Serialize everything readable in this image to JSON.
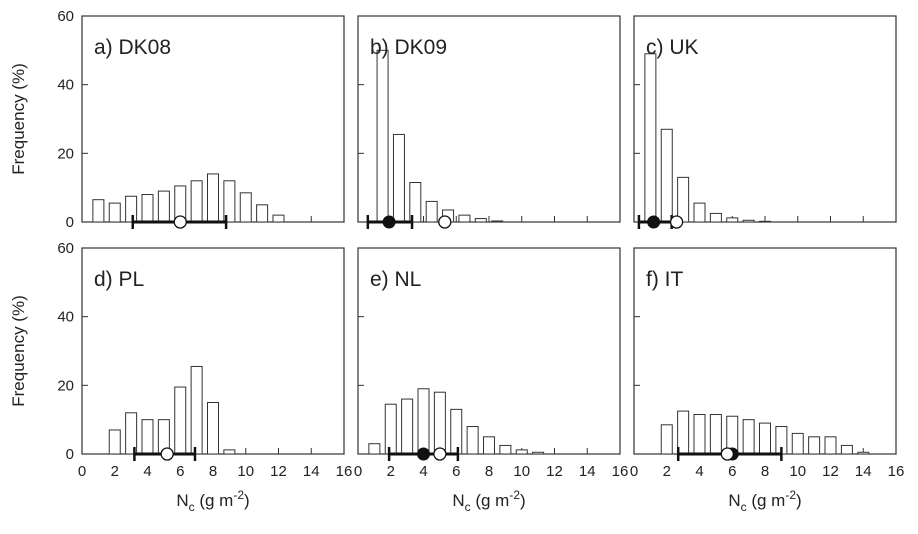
{
  "figure": {
    "ylabel": "Frequency (%)",
    "xlabel_main": "N",
    "xlabel_sub": "c",
    "xlabel_mid": " (g m",
    "xlabel_sup": "-2",
    "xlabel_end": ")"
  },
  "chart_data": [
    {
      "type": "bar",
      "title": "a) DK08",
      "x": [
        1,
        2,
        3,
        4,
        5,
        6,
        7,
        8,
        9,
        10,
        11,
        12
      ],
      "values": [
        6.5,
        5.5,
        7.5,
        8,
        9,
        10.5,
        12,
        14,
        12,
        8.5,
        5,
        2
      ],
      "xlim": [
        0,
        16
      ],
      "ylim": [
        0,
        60
      ],
      "mean": 6.0,
      "median": null,
      "range": [
        3.1,
        8.8
      ]
    },
    {
      "type": "bar",
      "title": "b) DK09",
      "x": [
        1.5,
        2.5,
        3.5,
        4.5,
        5.5,
        6.5,
        7.5,
        8.5
      ],
      "values": [
        50,
        25.5,
        11.5,
        6,
        3.5,
        2,
        1,
        0.3
      ],
      "xlim": [
        0,
        16
      ],
      "ylim": [
        0,
        60
      ],
      "mean": 5.3,
      "median": 1.9,
      "range": [
        0.6,
        3.3
      ]
    },
    {
      "type": "bar",
      "title": "c) UK",
      "x": [
        1,
        2,
        3,
        4,
        5,
        6,
        7,
        8
      ],
      "values": [
        49,
        27,
        13,
        5.5,
        2.5,
        1.2,
        0.5,
        0.2
      ],
      "xlim": [
        0,
        16
      ],
      "ylim": [
        0,
        60
      ],
      "mean": 2.6,
      "median": 1.2,
      "range": [
        0.3,
        2.3
      ]
    },
    {
      "type": "bar",
      "title": "d) PL",
      "x": [
        2,
        3,
        4,
        5,
        6,
        7,
        8,
        9
      ],
      "values": [
        7,
        12,
        10,
        10,
        19.5,
        25.5,
        15,
        1.2
      ],
      "xlim": [
        0,
        16
      ],
      "ylim": [
        0,
        60
      ],
      "mean": 5.2,
      "median": null,
      "range": [
        3.2,
        6.9
      ]
    },
    {
      "type": "bar",
      "title": "e) NL",
      "x": [
        1,
        2,
        3,
        4,
        5,
        6,
        7,
        8,
        9,
        10,
        11
      ],
      "values": [
        3,
        14.5,
        16,
        19,
        18,
        13,
        8,
        5,
        2.5,
        1.2,
        0.5
      ],
      "xlim": [
        0,
        16
      ],
      "ylim": [
        0,
        60
      ],
      "mean": 5.0,
      "median": 4.0,
      "range": [
        1.9,
        6.1
      ]
    },
    {
      "type": "bar",
      "title": "f) IT",
      "x": [
        2,
        3,
        4,
        5,
        6,
        7,
        8,
        9,
        10,
        11,
        12,
        13,
        14
      ],
      "values": [
        8.5,
        12.5,
        11.5,
        11.5,
        11,
        10,
        9,
        8,
        6,
        5,
        5,
        2.5,
        0.5
      ],
      "xlim": [
        0,
        16
      ],
      "ylim": [
        0,
        60
      ],
      "mean": 5.7,
      "median": 6.0,
      "range": [
        2.7,
        9.0
      ]
    }
  ]
}
